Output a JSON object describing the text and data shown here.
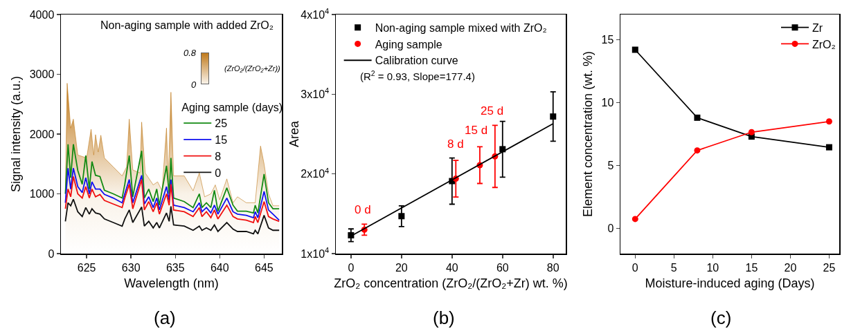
{
  "chart_data": [
    {
      "type": "line",
      "xlabel": "Wavelength (nm)",
      "ylabel": "Signal intensity (a.u.)",
      "legend_title": "Aging sample (days)",
      "xlim": [
        622.1,
        647.0
      ],
      "ylim": [
        0,
        4000
      ],
      "xticks": [
        625,
        630,
        635,
        640,
        645
      ],
      "yticks": [
        0,
        1000,
        2000,
        3000,
        4000
      ],
      "grid": false,
      "legend": "right",
      "line_style": "solid",
      "marker": "none",
      "annotations": [
        "Non-aging sample with added ZrO₂",
        "0.8",
        "0",
        "(ZrO₂/(ZrO₂+Zr))",
        "(a)"
      ],
      "x": [
        622.6,
        622.9,
        623.2,
        623.5,
        624,
        624.5,
        624.9,
        625.3,
        625.6,
        626,
        626.5,
        627,
        628,
        629,
        629.3,
        629.8,
        630.2,
        631.2,
        631.5,
        632,
        632.5,
        632.9,
        633.2,
        634,
        634.3,
        634.5,
        634.8,
        636,
        637,
        637.7,
        638,
        638.5,
        639,
        639.4,
        639.8,
        640.8,
        641.5,
        642,
        643,
        643.8,
        644,
        644.3,
        645,
        645.5,
        646,
        646.7
      ],
      "series": [
        {
          "type": "area",
          "color": "#c07a1c",
          "x": [
            622.6,
            622.8,
            623.2,
            623.5,
            624,
            625,
            625.5,
            625.8,
            626,
            626.3,
            626.6,
            627,
            628,
            629,
            629.5,
            629.8,
            630.2,
            631,
            631.2,
            631.6,
            632.5,
            633,
            633.5,
            634,
            634.2,
            634.5,
            634.8,
            636,
            637,
            637.7,
            638.3,
            639,
            639.5,
            640,
            640.8,
            641.5,
            642,
            643,
            644,
            644.6,
            645,
            645.5,
            646,
            646.7
          ],
          "values": [
            1100,
            2850,
            2100,
            2250,
            1650,
            1600,
            2080,
            1650,
            1990,
            1700,
            1980,
            1600,
            1450,
            1300,
            1450,
            2250,
            1400,
            1350,
            2200,
            1350,
            1150,
            1200,
            1050,
            2100,
            1200,
            2700,
            1300,
            1300,
            1050,
            1350,
            950,
            1000,
            1150,
            900,
            1250,
            850,
            950,
            850,
            850,
            1800,
            1500,
            1000,
            800,
            800
          ]
        },
        {
          "name": "25",
          "color": "#138a13",
          "values": [
            1000,
            1830,
            1270,
            1830,
            1390,
            1160,
            1640,
            1080,
            1540,
            1310,
            1290,
            1060,
            1000,
            930,
            1160,
            1640,
            950,
            1720,
            930,
            1080,
            870,
            1080,
            810,
            1470,
            1000,
            1600,
            930,
            870,
            770,
            1000,
            770,
            850,
            770,
            1060,
            710,
            1100,
            810,
            710,
            710,
            680,
            810,
            680,
            1330,
            850,
            750,
            750
          ]
        },
        {
          "name": "15",
          "color": "#1010f0",
          "values": [
            850,
            1430,
            1080,
            1430,
            1120,
            1020,
            1270,
            1000,
            1200,
            1080,
            1080,
            990,
            930,
            850,
            1000,
            1240,
            850,
            1310,
            830,
            950,
            770,
            930,
            730,
            1120,
            890,
            1240,
            810,
            770,
            700,
            850,
            700,
            770,
            680,
            810,
            660,
            930,
            700,
            660,
            640,
            600,
            700,
            600,
            1040,
            730,
            660,
            560
          ]
        },
        {
          "name": "8",
          "color": "#f01010",
          "values": [
            750,
            1080,
            950,
            1290,
            1000,
            930,
            1120,
            930,
            1080,
            950,
            990,
            890,
            830,
            770,
            930,
            1160,
            750,
            1240,
            730,
            870,
            700,
            850,
            660,
            1000,
            810,
            1160,
            730,
            700,
            620,
            770,
            620,
            700,
            600,
            730,
            580,
            810,
            620,
            580,
            560,
            520,
            620,
            520,
            870,
            620,
            580,
            540
          ]
        },
        {
          "name": "0",
          "color": "#111111",
          "values": [
            540,
            850,
            800,
            910,
            700,
            620,
            770,
            660,
            750,
            680,
            660,
            580,
            520,
            460,
            580,
            730,
            520,
            780,
            460,
            540,
            430,
            520,
            430,
            680,
            540,
            790,
            480,
            460,
            390,
            460,
            390,
            430,
            390,
            480,
            370,
            520,
            410,
            370,
            370,
            330,
            390,
            330,
            640,
            430,
            390,
            390
          ]
        }
      ]
    },
    {
      "type": "scatter",
      "xlabel": "ZrO₂ concentration (ZrO₂/(ZrO₂+Zr) wt. %)",
      "ylabel": "Area",
      "xlim": [
        -6,
        85
      ],
      "ylim": [
        10000,
        40000
      ],
      "xticks": [
        0,
        20,
        40,
        60,
        80
      ],
      "yticks": [
        {
          "value": 10000,
          "label": "1x10$^{4}$"
        },
        {
          "value": 20000,
          "label": "2x10$^{4}$"
        },
        {
          "value": 30000,
          "label": "3x10$^{4}$"
        },
        {
          "value": 40000,
          "label": "4x10$^{4}$"
        }
      ],
      "grid": false,
      "legend": "top left",
      "annotations": [
        "0 d",
        "8 d",
        "15 d",
        "25 d",
        "(R$^{2}$ = 0.93, Slope=177.4)",
        "(b)"
      ],
      "series": [
        {
          "name": "Non-aging sample mixed with ZrO₂",
          "color": "#000000",
          "marker": "square",
          "x": [
            0,
            20,
            40,
            60,
            80
          ],
          "values": [
            12300,
            14700,
            19100,
            23100,
            27200
          ],
          "errors": [
            800,
            1300,
            2900,
            3500,
            3100
          ]
        },
        {
          "name": "Aging sample",
          "color": "#ff0000",
          "marker": "circle",
          "x": [
            5.3,
            41.5,
            51,
            57
          ],
          "values": [
            13000,
            19400,
            21100,
            22200
          ],
          "errors": [
            700,
            2300,
            2300,
            3900
          ]
        },
        {
          "name": "Calibration curve",
          "type": "line",
          "color": "#000000",
          "line_style": "solid",
          "x": [
            0,
            80
          ],
          "values": [
            12200,
            26300
          ]
        }
      ]
    },
    {
      "type": "line",
      "xlabel": "Moisture-induced aging (Days)",
      "ylabel": "Element concentration (wt. %)",
      "xlim": [
        -1.9,
        26.3
      ],
      "ylim": [
        -2,
        17
      ],
      "xticks": [
        0,
        5,
        10,
        15,
        20,
        25
      ],
      "yticks": [
        0,
        5,
        10,
        15
      ],
      "grid": false,
      "legend": "top right",
      "line_style": "solid",
      "annotations": [
        "(c)"
      ],
      "x": [
        0,
        8,
        15,
        25
      ],
      "series": [
        {
          "name": "Zr",
          "color": "#000000",
          "marker": "square",
          "values": [
            14.2,
            8.8,
            7.3,
            6.45
          ]
        },
        {
          "name": "ZrO₂",
          "color": "#ff0000",
          "marker": "circle",
          "values": [
            0.75,
            6.2,
            7.65,
            8.5
          ]
        }
      ]
    }
  ]
}
